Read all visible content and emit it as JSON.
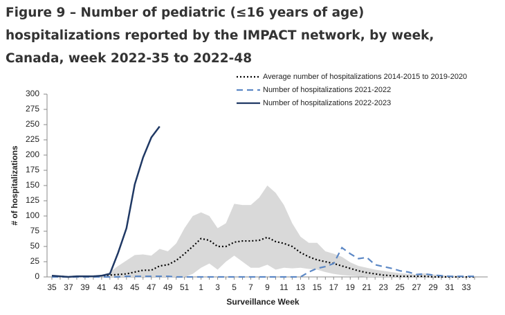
{
  "chart_data": {
    "type": "line",
    "title": "Figure 9 – Number of pediatric (≤16 years of age) hospitalizations reported by the IMPACT network, by week, Canada, week 2022-35 to 2022-48",
    "xlabel": "Surveillance Week",
    "ylabel": "# of hospitalizations",
    "categories": [
      "35",
      null,
      "37",
      null,
      "39",
      null,
      "41",
      null,
      "43",
      null,
      "45",
      null,
      "47",
      null,
      "49",
      null,
      "51",
      null,
      "1",
      null,
      "3",
      null,
      "5",
      null,
      "7",
      null,
      "9",
      null,
      "11",
      null,
      "13",
      null,
      "15",
      null,
      "17",
      null,
      "19",
      null,
      "21",
      null,
      "23",
      null,
      "25",
      null,
      "27",
      null,
      "29",
      null,
      "31",
      null,
      "33",
      null
    ],
    "ylim": [
      0,
      300
    ],
    "yticks": [
      0,
      25,
      50,
      75,
      100,
      125,
      150,
      175,
      200,
      225,
      250,
      275,
      300
    ],
    "range_band": {
      "color": "#d9d9d9",
      "upper": [
        2,
        1,
        1,
        2,
        2,
        2,
        3,
        8,
        18,
        27,
        36,
        37,
        35,
        46,
        42,
        55,
        80,
        100,
        106,
        100,
        80,
        88,
        120,
        118,
        118,
        130,
        150,
        138,
        118,
        88,
        66,
        56,
        56,
        42,
        38,
        33,
        24,
        18,
        15,
        12,
        10,
        8,
        6,
        5,
        4,
        6,
        4,
        3,
        2,
        2,
        1,
        1
      ],
      "lower": [
        0,
        0,
        0,
        0,
        0,
        0,
        0,
        0,
        0,
        0,
        0,
        0,
        0,
        0,
        0,
        0,
        0,
        5,
        15,
        22,
        12,
        25,
        35,
        25,
        15,
        15,
        20,
        12,
        15,
        14,
        15,
        13,
        12,
        8,
        5,
        3,
        2,
        1,
        0,
        0,
        0,
        0,
        0,
        0,
        0,
        0,
        0,
        0,
        0,
        0,
        0,
        0
      ]
    },
    "series": [
      {
        "name": "Average number of hospitalizations 2014-2015 to 2019-2020",
        "color": "#000000",
        "style": "dotted",
        "values": [
          1,
          1,
          0,
          1,
          1,
          1,
          2,
          3,
          4,
          5,
          8,
          11,
          11,
          18,
          20,
          27,
          38,
          50,
          63,
          60,
          50,
          50,
          57,
          59,
          59,
          60,
          65,
          58,
          55,
          50,
          40,
          33,
          28,
          25,
          22,
          18,
          14,
          10,
          7,
          5,
          3,
          2,
          1,
          1,
          1,
          1,
          0,
          0,
          0,
          0,
          0,
          0
        ]
      },
      {
        "name": "Number of hospitalizations 2021-2022",
        "color": "#5b87c5",
        "style": "dashed",
        "values": [
          0,
          0,
          0,
          0,
          0,
          0,
          0,
          0,
          0,
          1,
          1,
          1,
          1,
          1,
          1,
          0,
          0,
          0,
          0,
          0,
          0,
          0,
          0,
          0,
          0,
          0,
          0,
          0,
          0,
          0,
          0,
          8,
          14,
          17,
          22,
          48,
          38,
          30,
          32,
          20,
          17,
          14,
          10,
          8,
          4,
          5,
          3,
          2,
          1,
          1,
          1,
          1
        ]
      },
      {
        "name": "Number of hospitalizations 2022-2023",
        "color": "#1f3864",
        "style": "solid",
        "values": [
          2,
          1,
          0,
          1,
          1,
          1,
          2,
          5,
          40,
          80,
          152,
          196,
          229,
          247,
          null,
          null,
          null,
          null,
          null,
          null,
          null,
          null,
          null,
          null,
          null,
          null,
          null,
          null,
          null,
          null,
          null,
          null,
          null,
          null,
          null,
          null,
          null,
          null,
          null,
          null,
          null,
          null,
          null,
          null,
          null,
          null,
          null,
          null,
          null,
          null,
          null,
          null
        ]
      }
    ]
  }
}
